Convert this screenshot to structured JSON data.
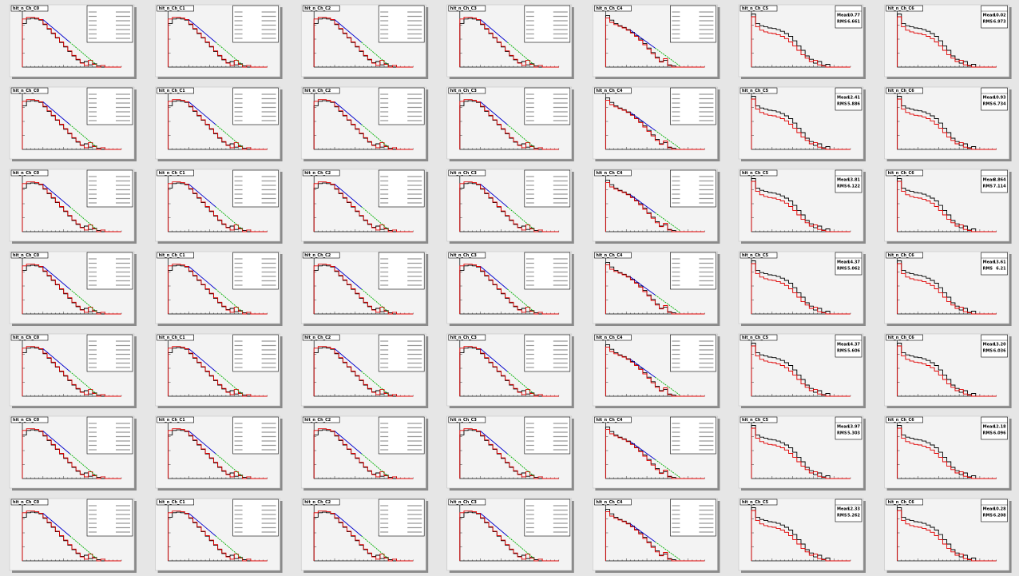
{
  "panels": [
    {
      "title": "hit_n_Ch_C0"
    },
    {
      "title": "hit_n_Ch_C1"
    },
    {
      "title": "hit_n_Ch_C2"
    },
    {
      "title": "hit_n_Ch_C3"
    },
    {
      "title": "hit_n_Ch_C4"
    },
    {
      "title": "hit_n_Ch_C5",
      "stats": [
        {
          "label": "Mean",
          "value": "10.77"
        },
        {
          "label": "RMS",
          "value": "6.661"
        }
      ]
    },
    {
      "title": "hit_n_Ch_C6",
      "stats": [
        {
          "label": "Mean",
          "value": "10.02"
        },
        {
          "label": "RMS",
          "value": "6.973"
        }
      ]
    },
    {
      "title": "hit_n_Ch_C0"
    },
    {
      "title": "hit_n_Ch_C1"
    },
    {
      "title": "hit_n_Ch_C2"
    },
    {
      "title": "hit_n_Ch_C3"
    },
    {
      "title": "hit_n_Ch_C4"
    },
    {
      "title": "hit_n_Ch_C5",
      "stats": [
        {
          "label": "Mean",
          "value": "12.41"
        },
        {
          "label": "RMS",
          "value": "5.886"
        }
      ]
    },
    {
      "title": "hit_n_Ch_C6",
      "stats": [
        {
          "label": "Mean",
          "value": "10.93"
        },
        {
          "label": "RMS",
          "value": "6.734"
        }
      ]
    },
    {
      "title": "hit_n_Ch_C0"
    },
    {
      "title": "hit_n_Ch_C1"
    },
    {
      "title": "hit_n_Ch_C2"
    },
    {
      "title": "hit_n_Ch_C3"
    },
    {
      "title": "hit_n_Ch_C4"
    },
    {
      "title": "hit_n_Ch_C5",
      "stats": [
        {
          "label": "Mean",
          "value": "13.81"
        },
        {
          "label": "RMS",
          "value": "6.122"
        }
      ]
    },
    {
      "title": "hit_n_Ch_C6",
      "stats": [
        {
          "label": "Mean",
          "value": "8.864"
        },
        {
          "label": "RMS",
          "value": "7.114"
        }
      ]
    },
    {
      "title": "hit_n_Ch_C0"
    },
    {
      "title": "hit_n_Ch_C1"
    },
    {
      "title": "hit_n_Ch_C2"
    },
    {
      "title": "hit_n_Ch_C3"
    },
    {
      "title": "hit_n_Ch_C4"
    },
    {
      "title": "hit_n_Ch_C5",
      "stats": [
        {
          "label": "Mean",
          "value": "14.37"
        },
        {
          "label": "RMS",
          "value": "5.062"
        }
      ]
    },
    {
      "title": "hit_n_Ch_C6",
      "stats": [
        {
          "label": "Mean",
          "value": "13.61"
        },
        {
          "label": "RMS",
          "value": "6.21"
        }
      ]
    },
    {
      "title": "hit_n_Ch_C0"
    },
    {
      "title": "hit_n_Ch_C1"
    },
    {
      "title": "hit_n_Ch_C2"
    },
    {
      "title": "hit_n_Ch_C3"
    },
    {
      "title": "hit_n_Ch_C4"
    },
    {
      "title": "hit_n_Ch_C5",
      "stats": [
        {
          "label": "Mean",
          "value": "14.37"
        },
        {
          "label": "RMS",
          "value": "5.606"
        }
      ]
    },
    {
      "title": "hit_n_Ch_C6",
      "stats": [
        {
          "label": "Mean",
          "value": "13.20"
        },
        {
          "label": "RMS",
          "value": "6.036"
        }
      ]
    },
    {
      "title": "hit_n_Ch_C0"
    },
    {
      "title": "hit_n_Ch_C1"
    },
    {
      "title": "hit_n_Ch_C2"
    },
    {
      "title": "hit_n_Ch_C3"
    },
    {
      "title": "hit_n_Ch_C4"
    },
    {
      "title": "hit_n_Ch_C5",
      "stats": [
        {
          "label": "Mean",
          "value": "13.97"
        },
        {
          "label": "RMS",
          "value": "5.303"
        }
      ]
    },
    {
      "title": "hit_n_Ch_C6",
      "stats": [
        {
          "label": "Mean",
          "value": "12.18"
        },
        {
          "label": "RMS",
          "value": "6.096"
        }
      ]
    },
    {
      "title": "hit_n_Ch_C0"
    },
    {
      "title": "hit_n_Ch_C1"
    },
    {
      "title": "hit_n_Ch_C2"
    },
    {
      "title": "hit_n_Ch_C3"
    },
    {
      "title": "hit_n_Ch_C4"
    },
    {
      "title": "hit_n_Ch_C5",
      "stats": [
        {
          "label": "Mean",
          "value": "12.33"
        },
        {
          "label": "RMS",
          "value": "5.262"
        }
      ]
    },
    {
      "title": "hit_n_Ch_C6",
      "stats": [
        {
          "label": "Mean",
          "value": "10.28"
        },
        {
          "label": "RMS",
          "value": "6.208"
        }
      ]
    }
  ],
  "curves": {
    "plateau": {
      "black": [
        0.78,
        0.86,
        0.87,
        0.86,
        0.84,
        0.76,
        0.68,
        0.6,
        0.52,
        0.44,
        0.36,
        0.28,
        0.2,
        0.13,
        0.08,
        0.1,
        0.04,
        0.06,
        0.02,
        0,
        0,
        0,
        0,
        0
      ],
      "red": [
        0.86,
        0.89,
        0.89,
        0.88,
        0.85,
        0.77,
        0.69,
        0.61,
        0.53,
        0.45,
        0.37,
        0.29,
        0.21,
        0.14,
        0.07,
        0.03,
        0.12,
        0.05,
        0,
        0.03,
        0,
        0,
        0,
        0
      ],
      "fit": [
        0.85,
        0.04
      ]
    },
    "drop": {
      "black": [
        0.92,
        0.84,
        0.78,
        0.74,
        0.71,
        0.67,
        0.62,
        0.56,
        0.5,
        0.42,
        0.34,
        0.26,
        0.18,
        0.1,
        0.12,
        0.04,
        0.02,
        0,
        0,
        0,
        0,
        0,
        0,
        0
      ],
      "red": [
        0.88,
        0.8,
        0.76,
        0.73,
        0.7,
        0.66,
        0.61,
        0.55,
        0.48,
        0.4,
        0.32,
        0.24,
        0.16,
        0.09,
        0.15,
        0.03,
        0,
        0,
        0,
        0,
        0,
        0,
        0,
        0
      ],
      "fit": [
        0.66,
        0.02
      ]
    },
    "tail": {
      "black": [
        0.95,
        0.78,
        0.74,
        0.72,
        0.7,
        0.69,
        0.67,
        0.64,
        0.6,
        0.55,
        0.47,
        0.38,
        0.3,
        0.2,
        0.14,
        0.07,
        0.1,
        0.03,
        0.05,
        0,
        0,
        0,
        0,
        0
      ],
      "red": [
        0.9,
        0.72,
        0.66,
        0.63,
        0.61,
        0.6,
        0.58,
        0.55,
        0.51,
        0.45,
        0.38,
        0.3,
        0.22,
        0.16,
        0.1,
        0.12,
        0.04,
        0.02,
        0,
        0,
        0,
        0,
        0,
        0
      ]
    }
  }
}
